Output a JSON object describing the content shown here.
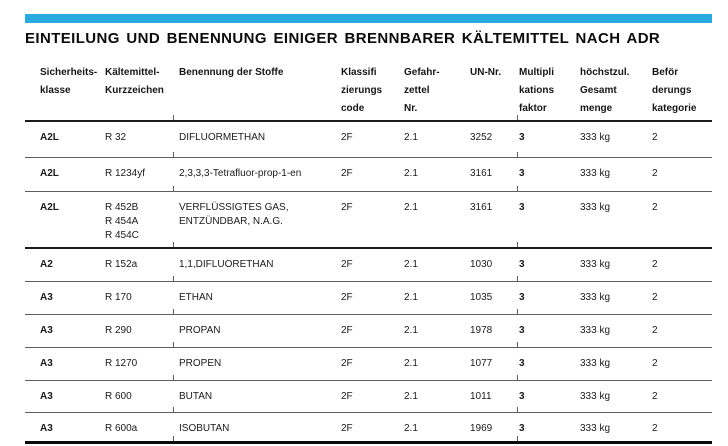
{
  "page": {
    "title": "EINTEILUNG UND BENENNUNG EINIGER BRENNBARER KÄLTEMITTEL NACH ADR",
    "accent_color": "#29abe2"
  },
  "table": {
    "headers": [
      "Sicherheits-\nklasse",
      "Kältemittel-\nKurzzeichen",
      "Benennung der Stoffe",
      "Klassifi\nzierungs\ncode",
      "Gefahr-\nzettel\nNr.",
      "UN-Nr.",
      "Multipli\nkations\nfaktor",
      "höchstzul.\nGesamt\nmenge",
      "Beför\nderungs\nkategorie"
    ],
    "rows": [
      [
        "A2L",
        "R 32",
        "DIFLUORMETHAN",
        "2F",
        "2.1",
        "3252",
        "3",
        "333 kg",
        "2"
      ],
      [
        "A2L",
        "R 1234yf",
        "2,3,3,3-Tetrafluor-prop-1-en",
        "2F",
        "2.1",
        "3161",
        "3",
        "333 kg",
        "2"
      ],
      [
        "A2L",
        "R 452B\nR 454A\nR 454C",
        "VERFLÜSSIGTES GAS,\nENTZÜNDBAR, N.A.G.",
        "2F",
        "2.1",
        "3161",
        "3",
        "333 kg",
        "2"
      ],
      [
        "A2",
        "R 152a",
        "1,1,DIFLUORETHAN",
        "2F",
        "2.1",
        "1030",
        "3",
        "333 kg",
        "2"
      ],
      [
        "A3",
        "R 170",
        "ETHAN",
        "2F",
        "2.1",
        "1035",
        "3",
        "333 kg",
        "2"
      ],
      [
        "A3",
        "R 290",
        "PROPAN",
        "2F",
        "2.1",
        "1978",
        "3",
        "333 kg",
        "2"
      ],
      [
        "A3",
        "R 1270",
        "PROPEN",
        "2F",
        "2.1",
        "1077",
        "3",
        "333 kg",
        "2"
      ],
      [
        "A3",
        "R 600",
        "BUTAN",
        "2F",
        "2.1",
        "1011",
        "3",
        "333 kg",
        "2"
      ],
      [
        "A3",
        "R 600a",
        "ISOBUTAN",
        "2F",
        "2.1",
        "1969",
        "3",
        "333 kg",
        "2"
      ]
    ]
  }
}
